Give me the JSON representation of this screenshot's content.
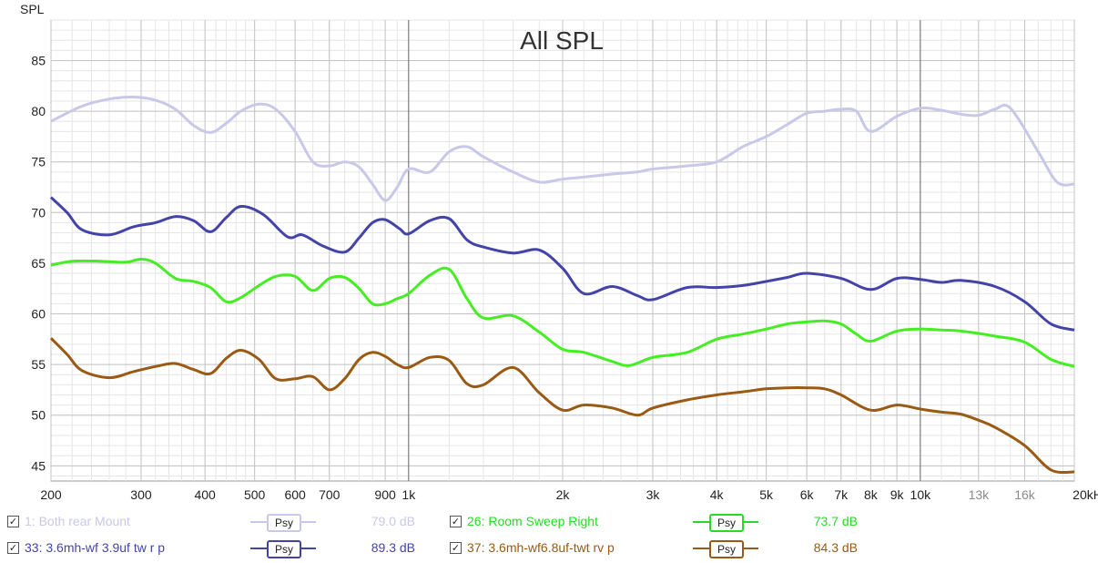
{
  "chart_data": {
    "type": "line",
    "title": "All SPL",
    "ylabel": "SPL",
    "xlabel": "",
    "x_scale": "log",
    "xlim": [
      200,
      20000
    ],
    "ylim": [
      43.5,
      89
    ],
    "grid": true,
    "y_ticks": [
      45,
      50,
      55,
      60,
      65,
      70,
      75,
      80,
      85
    ],
    "x_ticks": [
      {
        "value": 200,
        "label": "200",
        "dim": false
      },
      {
        "value": 300,
        "label": "300",
        "dim": false
      },
      {
        "value": 400,
        "label": "400",
        "dim": false
      },
      {
        "value": 500,
        "label": "500",
        "dim": false
      },
      {
        "value": 600,
        "label": "600",
        "dim": false
      },
      {
        "value": 700,
        "label": "700",
        "dim": false
      },
      {
        "value": 900,
        "label": "900",
        "dim": false
      },
      {
        "value": 1000,
        "label": "1k",
        "dim": false
      },
      {
        "value": 2000,
        "label": "2k",
        "dim": false
      },
      {
        "value": 3000,
        "label": "3k",
        "dim": false
      },
      {
        "value": 4000,
        "label": "4k",
        "dim": false
      },
      {
        "value": 5000,
        "label": "5k",
        "dim": false
      },
      {
        "value": 6000,
        "label": "6k",
        "dim": false
      },
      {
        "value": 7000,
        "label": "7k",
        "dim": false
      },
      {
        "value": 8000,
        "label": "8k",
        "dim": false
      },
      {
        "value": 9000,
        "label": "9k",
        "dim": false
      },
      {
        "value": 10000,
        "label": "10k",
        "dim": false
      },
      {
        "value": 13000,
        "label": "13k",
        "dim": true
      },
      {
        "value": 16000,
        "label": "16k",
        "dim": true
      },
      {
        "value": 20000,
        "label": "20kHz",
        "dim": false
      }
    ],
    "series": [
      {
        "name": "1: Both rear Mount",
        "color": "#c8c8e8",
        "x": [
          200,
          230,
          260,
          290,
          320,
          350,
          380,
          410,
          440,
          470,
          510,
          550,
          600,
          650,
          700,
          750,
          800,
          850,
          900,
          950,
          1000,
          1100,
          1200,
          1300,
          1400,
          1600,
          1800,
          2000,
          2200,
          2500,
          2800,
          3000,
          3500,
          4000,
          4500,
          5000,
          5500,
          6000,
          6500,
          7000,
          7500,
          8000,
          9000,
          10000,
          11000,
          12000,
          13000,
          14000,
          15000,
          17000,
          18500,
          20000
        ],
        "y": [
          79.0,
          80.5,
          81.2,
          81.4,
          81.1,
          80.2,
          78.6,
          77.9,
          78.8,
          80.0,
          80.7,
          80.2,
          78.0,
          75.0,
          74.6,
          75.0,
          74.5,
          72.8,
          71.2,
          72.5,
          74.3,
          74.0,
          76.0,
          76.5,
          75.5,
          74.0,
          73.0,
          73.3,
          73.5,
          73.8,
          74.0,
          74.3,
          74.6,
          75.0,
          76.5,
          77.5,
          78.7,
          79.8,
          80.0,
          80.2,
          80.0,
          78.0,
          79.5,
          80.3,
          80.1,
          79.7,
          79.6,
          80.2,
          80.3,
          76.0,
          73.0,
          72.8
        ]
      },
      {
        "name": "33: 3.6mh-wf 3.9uf tw r p",
        "color": "#4444a8",
        "x": [
          200,
          215,
          230,
          260,
          290,
          320,
          350,
          380,
          410,
          440,
          470,
          520,
          580,
          620,
          680,
          750,
          800,
          850,
          900,
          960,
          1000,
          1100,
          1200,
          1300,
          1400,
          1600,
          1800,
          2000,
          2200,
          2500,
          2800,
          3000,
          3500,
          4000,
          4500,
          5000,
          5500,
          6000,
          7000,
          8000,
          9000,
          10000,
          11000,
          12000,
          14000,
          16000,
          18000,
          20000
        ],
        "y": [
          71.5,
          70.0,
          68.3,
          67.8,
          68.6,
          69.0,
          69.6,
          69.2,
          68.1,
          69.5,
          70.6,
          69.8,
          67.6,
          67.8,
          66.7,
          66.1,
          67.5,
          69.0,
          69.3,
          68.4,
          67.9,
          69.2,
          69.4,
          67.3,
          66.6,
          66.0,
          66.3,
          64.5,
          62.0,
          62.7,
          61.8,
          61.4,
          62.6,
          62.6,
          62.8,
          63.2,
          63.6,
          64.0,
          63.5,
          62.4,
          63.5,
          63.4,
          63.1,
          63.3,
          62.7,
          61.2,
          59.0,
          58.4
        ]
      },
      {
        "name": "26: Room Sweep Right",
        "color": "#44ee22",
        "x": [
          200,
          220,
          250,
          280,
          300,
          320,
          350,
          380,
          410,
          440,
          470,
          510,
          550,
          600,
          650,
          700,
          750,
          800,
          850,
          900,
          950,
          1000,
          1100,
          1200,
          1300,
          1400,
          1600,
          1800,
          2000,
          2200,
          2500,
          2700,
          3000,
          3500,
          4000,
          4500,
          5000,
          5500,
          6000,
          6500,
          7000,
          7500,
          8000,
          9000,
          10000,
          11000,
          12000,
          14000,
          16000,
          18000,
          20000
        ],
        "y": [
          64.8,
          65.2,
          65.2,
          65.1,
          65.4,
          65.0,
          63.5,
          63.2,
          62.6,
          61.2,
          61.6,
          62.8,
          63.7,
          63.7,
          62.3,
          63.5,
          63.6,
          62.5,
          61.0,
          61.0,
          61.5,
          62.0,
          63.8,
          64.4,
          61.5,
          59.6,
          59.8,
          58.2,
          56.5,
          56.2,
          55.3,
          54.9,
          55.7,
          56.2,
          57.5,
          58.0,
          58.5,
          59.0,
          59.2,
          59.3,
          59.0,
          58.0,
          57.3,
          58.3,
          58.5,
          58.4,
          58.3,
          57.8,
          57.2,
          55.5,
          54.8
        ]
      },
      {
        "name": "37: 3.6mh-wf6.8uf-twt rv p",
        "color": "#9a5a14",
        "x": [
          200,
          215,
          230,
          260,
          290,
          320,
          350,
          380,
          410,
          440,
          470,
          510,
          550,
          600,
          650,
          700,
          750,
          800,
          850,
          900,
          950,
          1000,
          1100,
          1200,
          1300,
          1400,
          1600,
          1800,
          2000,
          2200,
          2500,
          2800,
          3000,
          3500,
          4000,
          4500,
          5000,
          5500,
          6000,
          6500,
          7000,
          8000,
          9000,
          10000,
          11000,
          12000,
          13000,
          14000,
          16000,
          18000,
          20000
        ],
        "y": [
          57.6,
          56.0,
          54.4,
          53.7,
          54.3,
          54.8,
          55.1,
          54.5,
          54.1,
          55.6,
          56.4,
          55.5,
          53.6,
          53.6,
          53.8,
          52.5,
          53.6,
          55.5,
          56.2,
          55.8,
          55.0,
          54.7,
          55.7,
          55.4,
          53.1,
          53.0,
          54.7,
          52.2,
          50.5,
          51.0,
          50.7,
          50.0,
          50.7,
          51.5,
          52.0,
          52.3,
          52.6,
          52.7,
          52.7,
          52.6,
          52.0,
          50.5,
          51.0,
          50.6,
          50.3,
          50.1,
          49.5,
          48.8,
          47.0,
          44.6,
          44.4
        ]
      }
    ]
  },
  "legend": [
    {
      "checked": true,
      "label": "1: Both rear Mount",
      "psy": "Psy",
      "value": "79.0 dB",
      "color": "#c8c8e8",
      "dim": true
    },
    {
      "checked": true,
      "label": "26: Room Sweep Right",
      "psy": "Psy",
      "value": "73.7 dB",
      "color": "#22dd22",
      "dim": false
    },
    {
      "checked": true,
      "label": "33: 3.6mh-wf 3.9uf tw r p",
      "psy": "Psy",
      "value": "89.3 dB",
      "color": "#4444a8",
      "dim": false
    },
    {
      "checked": true,
      "label": "37: 3.6mh-wf6.8uf-twt rv p",
      "psy": "Psy",
      "value": "84.3 dB",
      "color": "#9a5a14",
      "dim": false
    }
  ]
}
